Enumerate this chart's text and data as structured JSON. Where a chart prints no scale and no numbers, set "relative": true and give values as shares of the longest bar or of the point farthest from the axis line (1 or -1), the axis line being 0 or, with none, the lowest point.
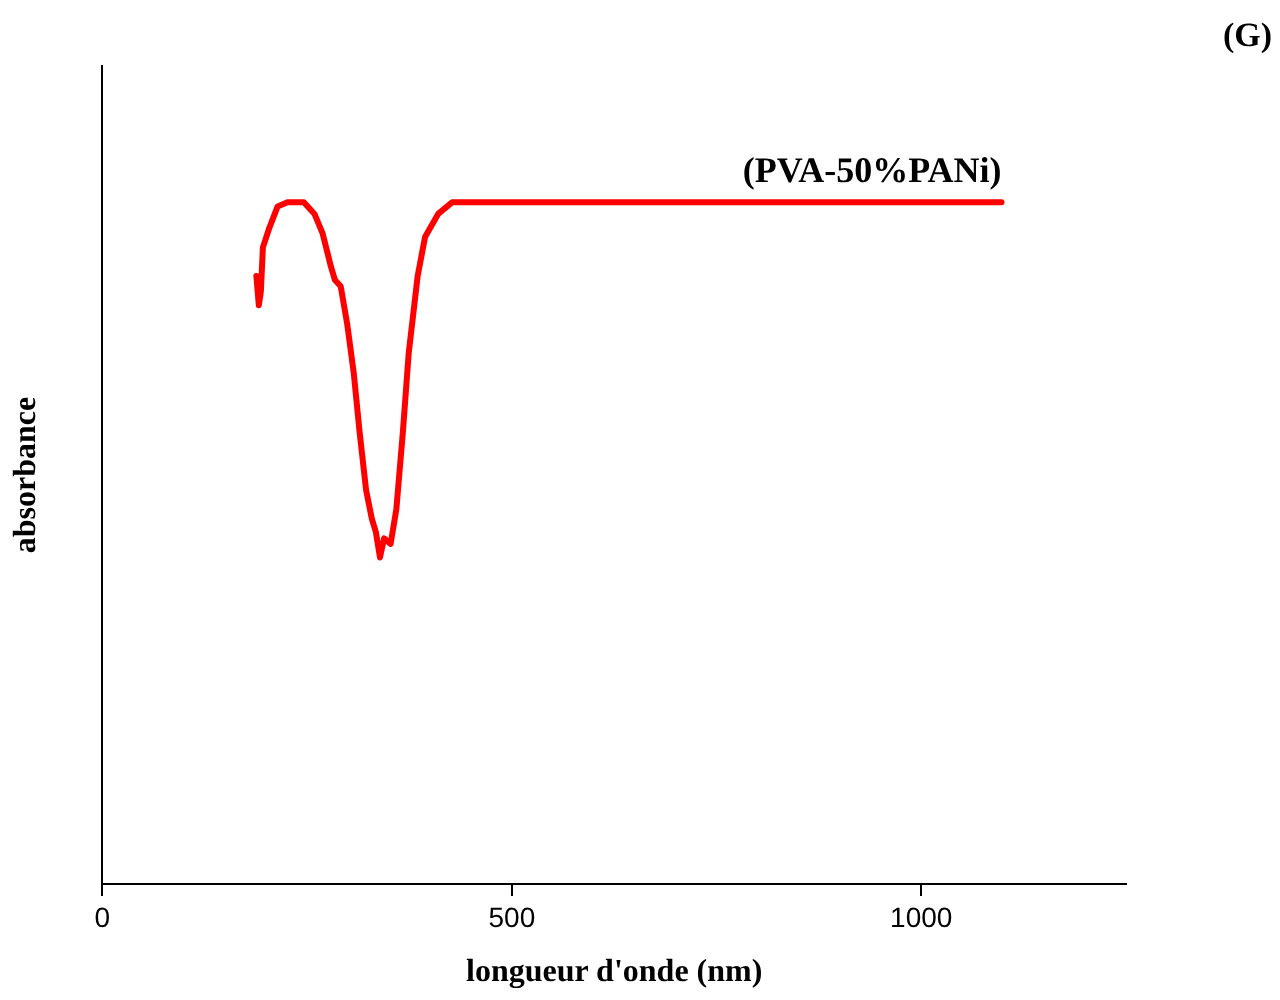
{
  "chart_data": {
    "type": "line",
    "title": "(G)",
    "xlabel": "longueur d'onde (nm)",
    "ylabel": "absorbance",
    "relative": true,
    "xlim": [
      0,
      1250
    ],
    "xticks": [
      0,
      500,
      1000
    ],
    "grid": false,
    "legend": false,
    "tick_labels": "x",
    "marker": "none",
    "line_style": "solid",
    "series": [
      {
        "name": "(PVA-50%PANi)",
        "color": "#ff0000",
        "x": [
          188,
          191,
          193.5,
          196,
          204,
          214,
          226,
          246,
          259,
          269,
          279,
          284,
          291,
          299,
          307,
          314,
          322,
          329,
          334,
          339,
          344,
          352,
          359,
          367,
          374,
          385,
          394,
          410,
          427,
          590,
          1098
        ],
        "values": [
          0.892,
          0.849,
          0.869,
          0.934,
          0.963,
          0.994,
          1,
          1,
          0.983,
          0.954,
          0.906,
          0.886,
          0.877,
          0.821,
          0.749,
          0.664,
          0.578,
          0.536,
          0.516,
          0.479,
          0.507,
          0.499,
          0.55,
          0.664,
          0.778,
          0.892,
          0.949,
          0.983,
          1,
          1,
          1
        ]
      }
    ]
  }
}
